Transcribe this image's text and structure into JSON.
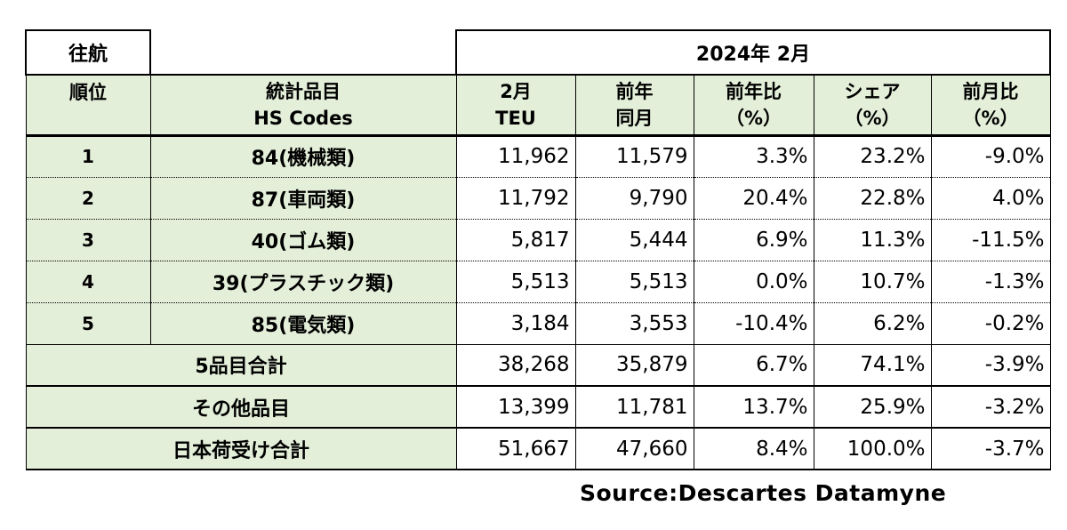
{
  "title": {
    "direction": "往航",
    "period": "2024年 2月"
  },
  "headers": {
    "rank": "順位",
    "item_line1": "統計品目",
    "item_line2": "HS Codes",
    "teu_line1": "2月",
    "teu_line2": "TEU",
    "prev_line1": "前年",
    "prev_line2": "同月",
    "yoy_line1": "前年比",
    "yoy_line2": "（%）",
    "share_line1": "シェア",
    "share_line2": "（%）",
    "mom_line1": "前月比",
    "mom_line2": "（%）"
  },
  "rows": [
    {
      "rank": "1",
      "item": "84(機械類)",
      "teu": "11,962",
      "prev": "11,579",
      "yoy": "3.3%",
      "share": "23.2%",
      "mom": "-9.0%"
    },
    {
      "rank": "2",
      "item": "87(車両類)",
      "teu": "11,792",
      "prev": "9,790",
      "yoy": "20.4%",
      "share": "22.8%",
      "mom": "4.0%"
    },
    {
      "rank": "3",
      "item": "40(ゴム類)",
      "teu": "5,817",
      "prev": "5,444",
      "yoy": "6.9%",
      "share": "11.3%",
      "mom": "-11.5%"
    },
    {
      "rank": "4",
      "item": "39(プラスチック類)",
      "teu": "5,513",
      "prev": "5,513",
      "yoy": "0.0%",
      "share": "10.7%",
      "mom": "-1.3%"
    },
    {
      "rank": "5",
      "item": "85(電気類)",
      "teu": "3,184",
      "prev": "3,553",
      "yoy": "-10.4%",
      "share": "6.2%",
      "mom": "-0.2%"
    }
  ],
  "summary": [
    {
      "label": "5品目合計",
      "teu": "38,268",
      "prev": "35,879",
      "yoy": "6.7%",
      "share": "74.1%",
      "mom": "-3.9%"
    },
    {
      "label": "その他品目",
      "teu": "13,399",
      "prev": "11,781",
      "yoy": "13.7%",
      "share": "25.9%",
      "mom": "-3.2%"
    },
    {
      "label": "日本荷受け合計",
      "teu": "51,667",
      "prev": "47,660",
      "yoy": "8.4%",
      "share": "100.0%",
      "mom": "-3.7%"
    }
  ],
  "source": "Source:Descartes  Datamyne",
  "colors": {
    "header_bg": "#e3efd9",
    "border": "#000000"
  }
}
